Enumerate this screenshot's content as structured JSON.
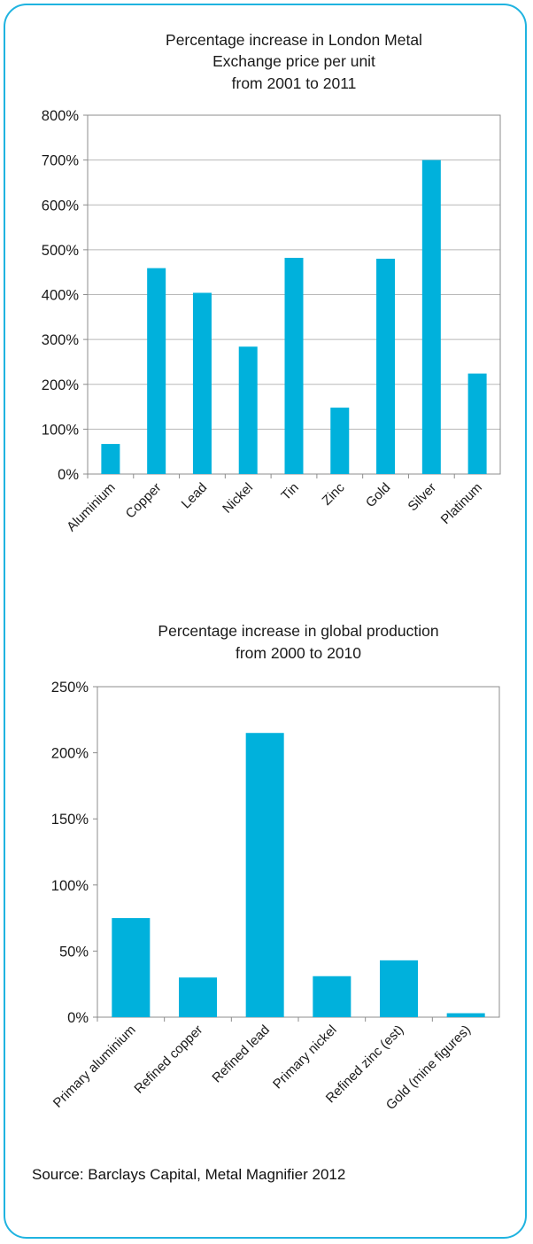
{
  "accent_color": "#1fb3e0",
  "bar_color": "#00b1dc",
  "source_text": "Source: Barclays Capital, Metal Magnifier 2012",
  "chart_data": [
    {
      "type": "bar",
      "title": [
        "Percentage increase in London Metal",
        "Exchange price per unit",
        "from 2001 to 2011"
      ],
      "categories": [
        "Aluminium",
        "Copper",
        "Lead",
        "Nickel",
        "Tin",
        "Zinc",
        "Gold",
        "Silver",
        "Platinum"
      ],
      "values": [
        67,
        459,
        404,
        284,
        482,
        148,
        480,
        700,
        224
      ],
      "ylim": [
        0,
        800
      ],
      "yticks": [
        "0%",
        "100%",
        "200%",
        "300%",
        "400%",
        "500%",
        "600%",
        "700%",
        "800%"
      ],
      "grid": true
    },
    {
      "type": "bar",
      "title": [
        "Percentage increase in global production",
        "from 2000 to 2010"
      ],
      "categories": [
        "Primary aluminium",
        "Refined copper",
        "Refined lead",
        "Primary nickel",
        "Refined zinc (est)",
        "Gold (mine figures)"
      ],
      "values": [
        75,
        30,
        215,
        31,
        43,
        3
      ],
      "ylim": [
        0,
        250
      ],
      "yticks": [
        "0%",
        "50%",
        "100%",
        "150%",
        "200%",
        "250%"
      ],
      "grid": false
    }
  ]
}
